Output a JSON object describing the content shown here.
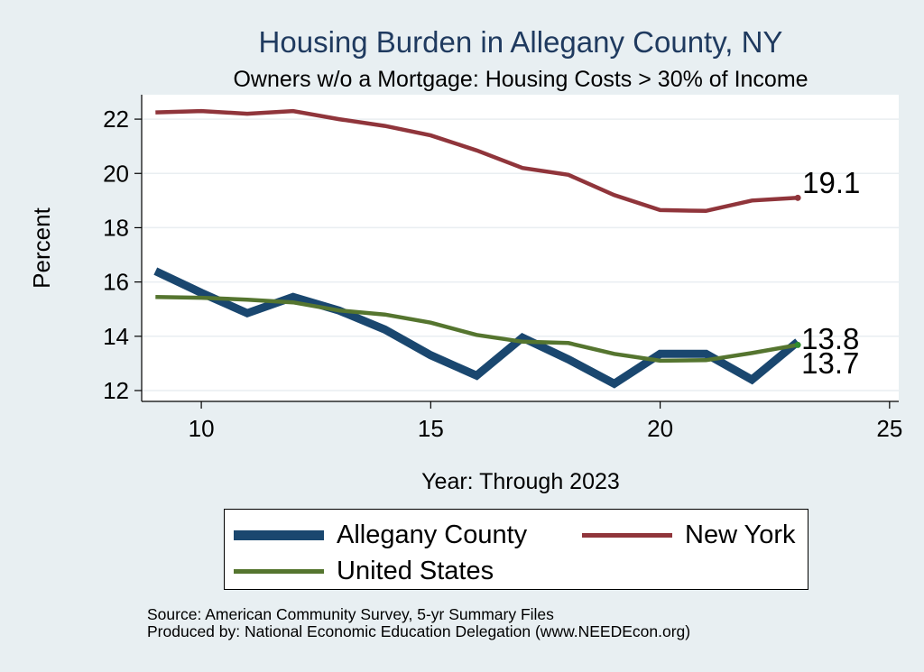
{
  "chart_data": {
    "type": "line",
    "title": "Housing Burden in Allegany County, NY",
    "subtitle": "Owners w/o a Mortgage: Housing Costs > 30% of Income",
    "xlabel": "Year: Through 2023",
    "ylabel": "Percent",
    "xlim": [
      8.7,
      25.2
    ],
    "ylim": [
      11.6,
      22.9
    ],
    "xticks": [
      10,
      15,
      20,
      25
    ],
    "yticks": [
      12,
      14,
      16,
      18,
      20,
      22
    ],
    "grid": "horizontal",
    "legend_position": "bottom",
    "series": [
      {
        "name": "Allegany County",
        "color": "#1a476f",
        "x": [
          9,
          10,
          11,
          12,
          13,
          14,
          15,
          16,
          17,
          18,
          19,
          20,
          21,
          22,
          23
        ],
        "values": [
          16.4,
          15.6,
          14.85,
          15.45,
          14.95,
          14.25,
          13.3,
          12.55,
          13.95,
          13.15,
          12.25,
          13.35,
          13.35,
          12.4,
          13.8
        ],
        "end_label": "13.8"
      },
      {
        "name": "New York",
        "color": "#90353b",
        "x": [
          9,
          10,
          11,
          12,
          13,
          14,
          15,
          16,
          17,
          18,
          19,
          20,
          21,
          22,
          23
        ],
        "values": [
          22.25,
          22.3,
          22.2,
          22.3,
          22.0,
          21.75,
          21.4,
          20.85,
          20.2,
          19.95,
          19.2,
          18.65,
          18.62,
          19.0,
          19.1
        ],
        "end_label": "19.1"
      },
      {
        "name": "United States",
        "color": "#55752f",
        "x": [
          9,
          10,
          11,
          12,
          13,
          14,
          15,
          16,
          17,
          18,
          19,
          20,
          21,
          22,
          23
        ],
        "values": [
          15.45,
          15.42,
          15.35,
          15.25,
          14.95,
          14.8,
          14.5,
          14.05,
          13.8,
          13.75,
          13.35,
          13.1,
          13.12,
          13.38,
          13.68
        ],
        "end_label": "13.7"
      }
    ],
    "legend": [
      {
        "name": "Allegany County",
        "color": "#1a476f"
      },
      {
        "name": "New York",
        "color": "#90353b"
      },
      {
        "name": "United States",
        "color": "#55752f"
      }
    ]
  },
  "footer": {
    "source": "Source: American Community Survey, 5-yr Summary Files",
    "producer": "Produced by: National Economic Education Delegation (www.NEEDEcon.org)"
  }
}
